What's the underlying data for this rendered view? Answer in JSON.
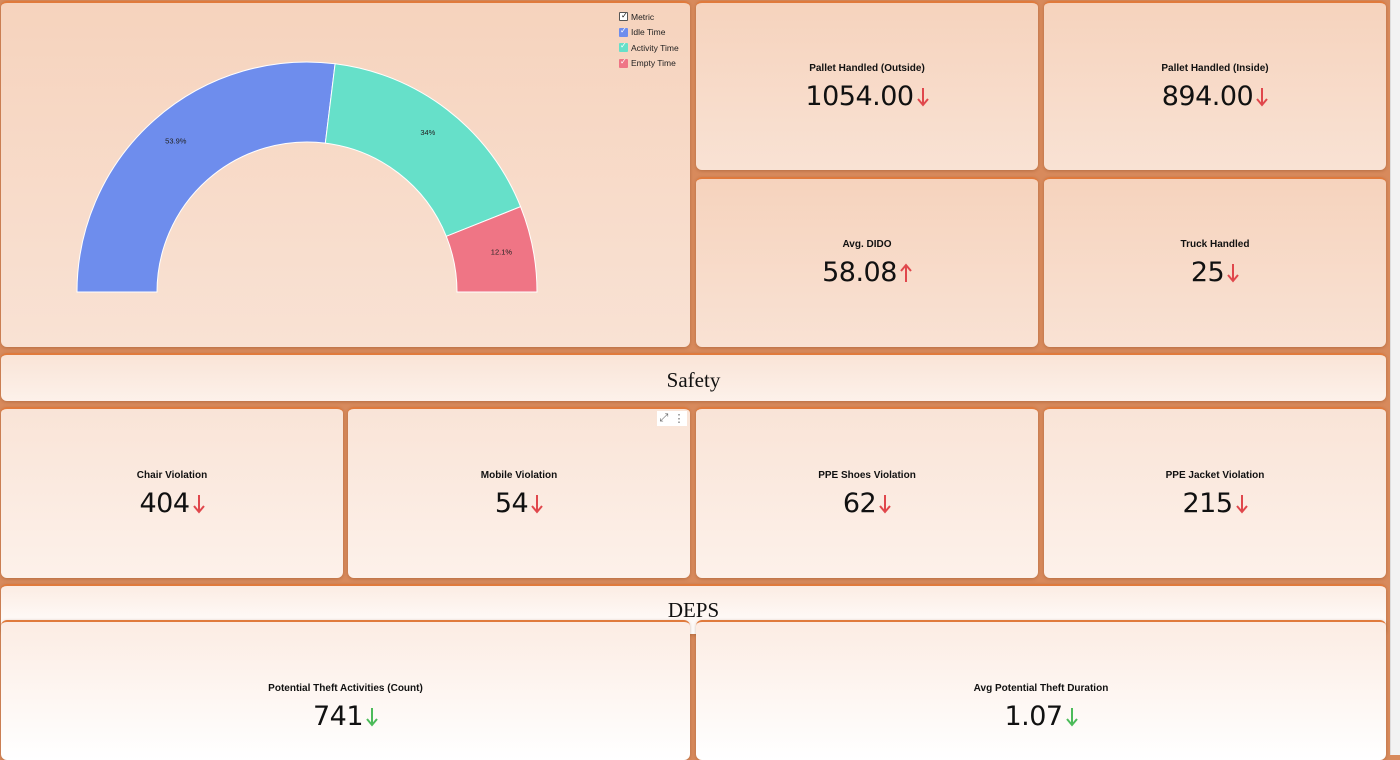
{
  "gauge": {
    "legend_items": [
      {
        "label": "Metric",
        "color": "#ffffff",
        "checked": true
      },
      {
        "label": "Idle Time",
        "color": "#6e8ded",
        "checked": true
      },
      {
        "label": "Activity Time",
        "color": "#66e0c9",
        "checked": true
      },
      {
        "label": "Empty Time",
        "color": "#ef7585",
        "checked": true
      }
    ]
  },
  "chart_data": {
    "type": "pie",
    "variant": "semicircle-donut",
    "labels": [
      "Idle Time",
      "Activity Time",
      "Empty Time"
    ],
    "values": [
      53.9,
      34,
      12.1
    ],
    "data_labels": [
      "53.9%",
      "34%",
      "12.1%"
    ],
    "colors": [
      "#6e8ded",
      "#66e0c9",
      "#ef7585"
    ],
    "legend_position": "top-right"
  },
  "kpis_top": [
    {
      "label": "Pallet Handled (Outside)",
      "value": "1054.00",
      "trend": "down",
      "trend_color": "#e0474c"
    },
    {
      "label": "Pallet Handled (Inside)",
      "value": "894.00",
      "trend": "down",
      "trend_color": "#e0474c"
    },
    {
      "label": "Avg. DIDO",
      "value": "58.08",
      "trend": "up",
      "trend_color": "#e0474c"
    },
    {
      "label": "Truck Handled",
      "value": "25",
      "trend": "down",
      "trend_color": "#e0474c"
    }
  ],
  "sections": {
    "safety": "Safety",
    "deps": "DEPS"
  },
  "safety_kpis": [
    {
      "label": "Chair Violation",
      "value": "404",
      "trend": "down",
      "trend_color": "#e0474c"
    },
    {
      "label": "Mobile Violation",
      "value": "54",
      "trend": "down",
      "trend_color": "#e0474c"
    },
    {
      "label": "PPE Shoes Violation",
      "value": "62",
      "trend": "down",
      "trend_color": "#e0474c"
    },
    {
      "label": "PPE Jacket Violation",
      "value": "215",
      "trend": "down",
      "trend_color": "#e0474c"
    }
  ],
  "deps_kpis": [
    {
      "label": "Potential Theft Activities (Count)",
      "value": "741",
      "trend": "down",
      "trend_color": "#4cbb5a"
    },
    {
      "label": "Avg Potential Theft Duration",
      "value": "1.07",
      "trend": "down",
      "trend_color": "#4cbb5a"
    }
  ],
  "toolbar": {
    "expand_icon": "expand-icon",
    "more_icon": "more-vertical-icon",
    "expand_glyph": "⤢",
    "more_glyph": "⋮"
  }
}
